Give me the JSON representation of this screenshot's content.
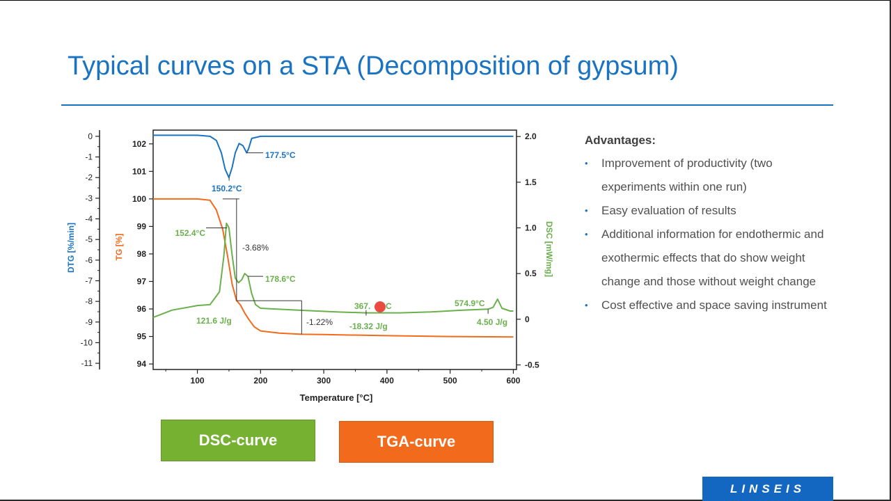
{
  "title": "Typical curves on a STA (Decomposition of gypsum)",
  "colors": {
    "title": "#1a73c1",
    "dtg": "#1a73c1",
    "tg": "#f26a1b",
    "dsc": "#6ab04c"
  },
  "chart_data": {
    "type": "line",
    "xlabel": "Temperature [°C]",
    "xlim": [
      30,
      605
    ],
    "x_ticks": [
      100,
      200,
      300,
      400,
      500,
      600
    ],
    "axes": {
      "dtg": {
        "label": "DTG [%/min]",
        "ylim": [
          -11.3,
          0.3
        ],
        "ticks": [
          0,
          -1,
          -2,
          -3,
          -4,
          -5,
          -6,
          -7,
          -8,
          -9,
          -10,
          -11
        ]
      },
      "tg": {
        "label": "TG [%]",
        "ylim": [
          93.8,
          102.5
        ],
        "ticks": [
          102,
          101,
          100,
          99,
          98,
          97,
          96,
          95,
          94
        ]
      },
      "dsc": {
        "label": "DSC [mW/mg]",
        "ylim": [
          -0.55,
          2.07
        ],
        "ticks": [
          "2.0",
          "1.5",
          "1.0",
          "0.5",
          "0",
          "-0.5"
        ]
      }
    },
    "series": [
      {
        "name": "DTG",
        "axis": "dtg",
        "color": "#1a73c1",
        "x": [
          30,
          100,
          120,
          130,
          138,
          144,
          150,
          155,
          160,
          166,
          172,
          178,
          181,
          186,
          200,
          300,
          400,
          500,
          600
        ],
        "y": [
          0.05,
          0.05,
          0.0,
          -0.2,
          -0.8,
          -1.6,
          -2.0,
          -1.5,
          -0.8,
          -0.35,
          -0.45,
          -0.8,
          -0.6,
          -0.1,
          0.0,
          0.0,
          0.0,
          0.0,
          0.0
        ]
      },
      {
        "name": "TG",
        "axis": "tg",
        "color": "#f26a1b",
        "x": [
          30,
          100,
          120,
          130,
          140,
          148,
          155,
          162,
          168,
          175,
          182,
          190,
          200,
          230,
          265,
          300,
          400,
          500,
          600
        ],
        "y": [
          100.0,
          100.0,
          99.95,
          99.6,
          98.9,
          97.9,
          96.9,
          96.3,
          96.15,
          95.85,
          95.6,
          95.35,
          95.2,
          95.12,
          95.08,
          95.07,
          95.03,
          95.0,
          94.98
        ]
      },
      {
        "name": "DSC",
        "axis": "dsc",
        "color": "#6ab04c",
        "x": [
          30,
          60,
          100,
          120,
          135,
          142,
          146,
          150,
          155,
          160,
          165,
          170,
          175,
          180,
          186,
          192,
          200,
          260,
          320,
          367,
          420,
          470,
          520,
          560,
          568,
          575,
          582,
          595,
          600
        ],
        "y": [
          0.02,
          0.1,
          0.15,
          0.16,
          0.3,
          0.7,
          1.05,
          1.0,
          0.7,
          0.45,
          0.4,
          0.43,
          0.5,
          0.47,
          0.28,
          0.16,
          0.12,
          0.1,
          0.08,
          0.07,
          0.07,
          0.08,
          0.1,
          0.11,
          0.13,
          0.22,
          0.12,
          0.09,
          0.09
        ]
      }
    ],
    "annotations": {
      "dtg_peak1": "150.2°C",
      "dtg_peak2": "177.5°C",
      "dsc_peak1": "152.4°C",
      "dsc_peak2": "178.6°C",
      "dsc_peak3": "367.",
      "dsc_peak3_suffix": "C",
      "dsc_peak4": "574.9°C",
      "tg_step1": "-3.68%",
      "tg_step2": "-1.22%",
      "dsc_area1": "121.6 J/g",
      "dsc_area2": "-18.32 J/g",
      "dsc_area3": "4.50 J/g"
    }
  },
  "buttons": {
    "dsc": "DSC-curve",
    "tga": "TGA-curve"
  },
  "advantages": {
    "heading": "Advantages:",
    "items": [
      "Improvement of productivity (two experiments within one run)",
      "Easy evaluation of results",
      "Additional information for endothermic and exothermic effects that do show weight change and those without weight change",
      "Cost effective and space saving instrument"
    ]
  },
  "logo": "LINSEIS"
}
